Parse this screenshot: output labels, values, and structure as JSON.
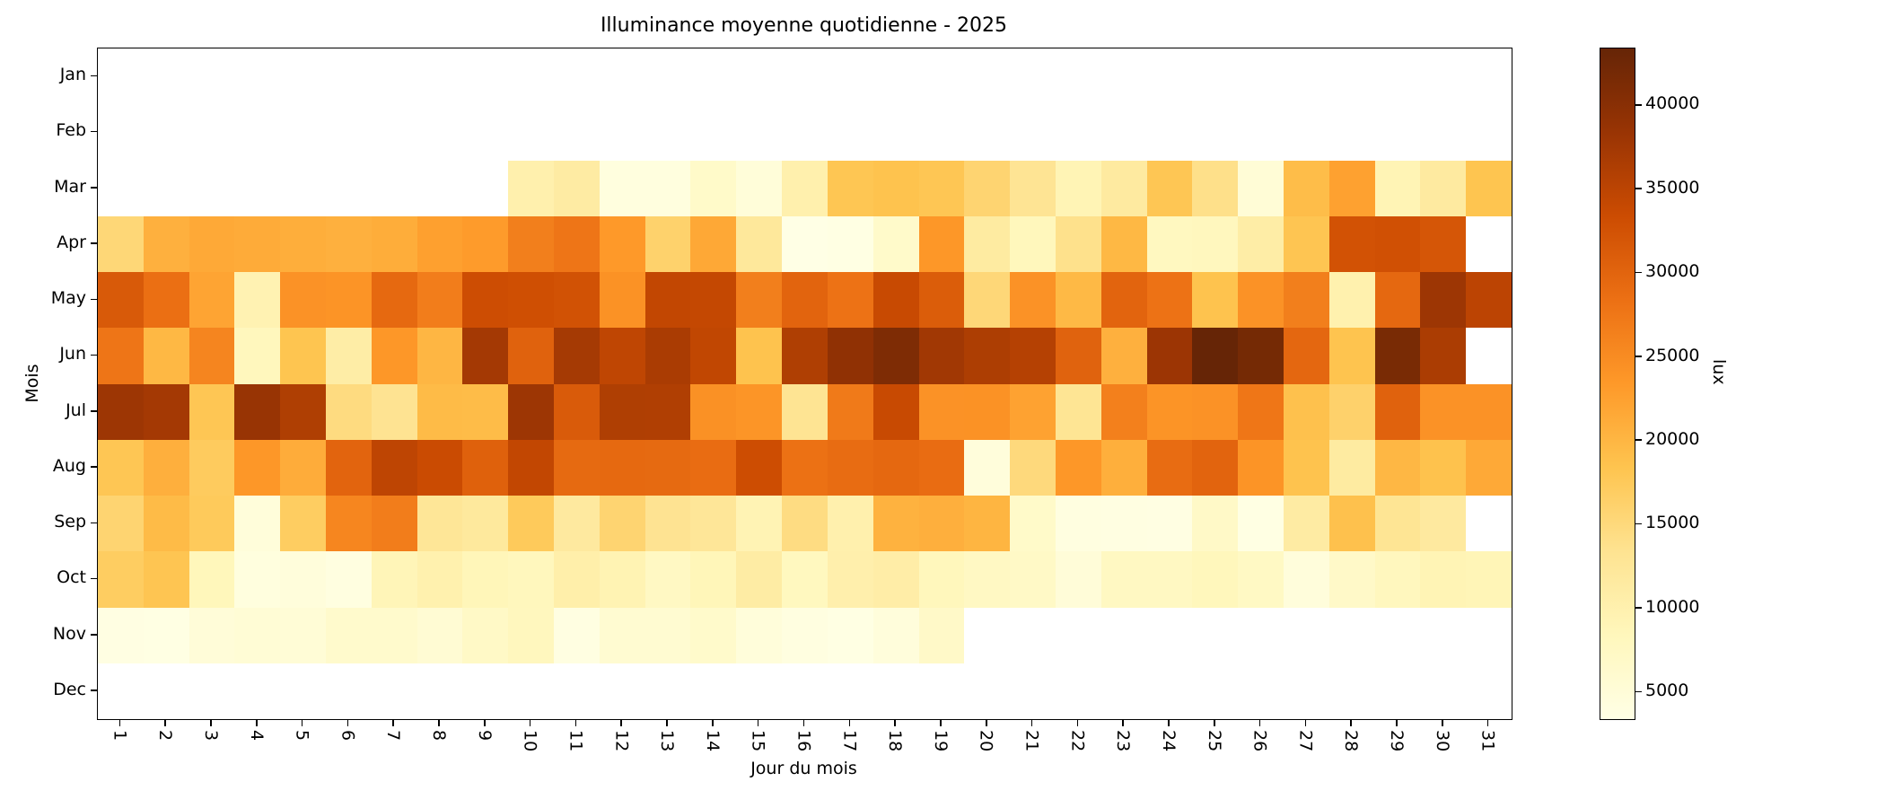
{
  "chart_data": {
    "type": "heatmap",
    "title": "Illuminance moyenne quotidienne - 2025",
    "xlabel": "Jour du mois",
    "ylabel": "Mois",
    "x_tick_labels": [
      "1",
      "2",
      "3",
      "4",
      "5",
      "6",
      "7",
      "8",
      "9",
      "10",
      "11",
      "12",
      "13",
      "14",
      "15",
      "16",
      "17",
      "18",
      "19",
      "20",
      "21",
      "22",
      "23",
      "24",
      "25",
      "26",
      "27",
      "28",
      "29",
      "30",
      "31"
    ],
    "y_tick_labels": [
      "Jan",
      "Feb",
      "Mar",
      "Apr",
      "May",
      "Jun",
      "Jul",
      "Aug",
      "Sep",
      "Oct",
      "Nov",
      "Dec"
    ],
    "vmin": 3400,
    "vmax": 43400,
    "nan_color": "#ffffff",
    "colormap_name": "YlOrBr",
    "colormap_stops": [
      {
        "t": 0.0,
        "color": "#ffffe5"
      },
      {
        "t": 0.125,
        "color": "#fff7bc"
      },
      {
        "t": 0.25,
        "color": "#fee391"
      },
      {
        "t": 0.375,
        "color": "#fec44f"
      },
      {
        "t": 0.5,
        "color": "#fe9929"
      },
      {
        "t": 0.625,
        "color": "#ec7014"
      },
      {
        "t": 0.75,
        "color": "#cc4c02"
      },
      {
        "t": 0.875,
        "color": "#993404"
      },
      {
        "t": 1.0,
        "color": "#662506"
      }
    ],
    "colorbar": {
      "label": "lux",
      "ticks": [
        5000,
        10000,
        15000,
        20000,
        25000,
        30000,
        35000,
        40000
      ]
    },
    "series": [
      {
        "name": "Jan",
        "values": [
          null,
          null,
          null,
          null,
          null,
          null,
          null,
          null,
          null,
          null,
          null,
          null,
          null,
          null,
          null,
          null,
          null,
          null,
          null,
          null,
          null,
          null,
          null,
          null,
          null,
          null,
          null,
          null,
          null,
          null,
          null
        ]
      },
      {
        "name": "Feb",
        "values": [
          null,
          null,
          null,
          null,
          null,
          null,
          null,
          null,
          null,
          null,
          null,
          null,
          null,
          null,
          null,
          null,
          null,
          null,
          null,
          null,
          null,
          null,
          null,
          null,
          null,
          null,
          null,
          null,
          null,
          null,
          null
        ]
      },
      {
        "name": "Mar",
        "values": [
          null,
          null,
          null,
          null,
          null,
          null,
          null,
          null,
          null,
          10200,
          11300,
          4300,
          4200,
          6800,
          4900,
          10200,
          18100,
          18500,
          18000,
          15800,
          13100,
          9200,
          11700,
          18000,
          13900,
          5200,
          19200,
          22500,
          9200,
          11600,
          18300
        ]
      },
      {
        "name": "Apr",
        "values": [
          15400,
          20700,
          21500,
          21300,
          21000,
          20700,
          21100,
          22600,
          23200,
          26600,
          27800,
          23400,
          16200,
          21700,
          12200,
          3400,
          3700,
          6700,
          23700,
          11500,
          8400,
          13800,
          19800,
          7900,
          8100,
          11000,
          18200,
          32500,
          32800,
          32000,
          null
        ]
      },
      {
        "name": "May",
        "values": [
          31500,
          28600,
          22100,
          9600,
          24200,
          24000,
          29400,
          26800,
          33200,
          33000,
          32600,
          24300,
          34400,
          34200,
          26600,
          30000,
          28200,
          33800,
          31100,
          15300,
          24200,
          19700,
          30000,
          28100,
          18500,
          24200,
          26600,
          10000,
          29500,
          38000,
          35000
        ]
      },
      {
        "name": "Jun",
        "values": [
          27800,
          19800,
          25800,
          8300,
          18300,
          11000,
          23600,
          20000,
          37300,
          30300,
          37200,
          34700,
          36700,
          34500,
          18500,
          36200,
          39300,
          41000,
          37600,
          36400,
          35700,
          30200,
          20700,
          38100,
          43400,
          41900,
          29600,
          18400,
          41500,
          36600,
          null
        ]
      },
      {
        "name": "Jul",
        "values": [
          38000,
          37300,
          18000,
          38500,
          36200,
          14700,
          13300,
          19500,
          19300,
          38000,
          31300,
          36200,
          36100,
          24400,
          23900,
          13200,
          27200,
          33800,
          24200,
          24300,
          22300,
          13000,
          26500,
          24000,
          24200,
          27700,
          18700,
          16300,
          30300,
          24200,
          24200
        ]
      },
      {
        "name": "Aug",
        "values": [
          18000,
          20800,
          17300,
          23700,
          21200,
          30000,
          34800,
          33600,
          30500,
          34400,
          29300,
          29400,
          29300,
          28900,
          33300,
          28300,
          29000,
          29500,
          28900,
          4600,
          15000,
          23700,
          20900,
          29000,
          30000,
          24000,
          18500,
          11500,
          19900,
          18600,
          21500
        ]
      },
      {
        "name": "Sep",
        "values": [
          15800,
          19500,
          17500,
          4800,
          17000,
          25700,
          26800,
          12700,
          12000,
          17500,
          11800,
          15800,
          13300,
          12600,
          9300,
          14500,
          10200,
          20500,
          20800,
          20200,
          6800,
          4000,
          3900,
          3800,
          7000,
          3600,
          11300,
          18700,
          13000,
          11800,
          null
        ]
      },
      {
        "name": "Oct",
        "values": [
          17000,
          18200,
          8500,
          4300,
          4600,
          4000,
          8900,
          10000,
          8700,
          8300,
          10500,
          9500,
          7600,
          8700,
          11200,
          8000,
          10300,
          10800,
          8400,
          7600,
          7200,
          5000,
          7700,
          7700,
          8400,
          7400,
          4600,
          6900,
          8100,
          9200,
          9000
        ]
      },
      {
        "name": "Nov",
        "values": [
          3800,
          3600,
          5000,
          5400,
          5200,
          6400,
          6400,
          5600,
          7200,
          8200,
          3900,
          5800,
          5800,
          6600,
          4800,
          4000,
          3700,
          4600,
          6900,
          null,
          null,
          null,
          null,
          null,
          null,
          null,
          null,
          null,
          null,
          null,
          null
        ]
      },
      {
        "name": "Dec",
        "values": [
          null,
          null,
          null,
          null,
          null,
          null,
          null,
          null,
          null,
          null,
          null,
          null,
          null,
          null,
          null,
          null,
          null,
          null,
          null,
          null,
          null,
          null,
          null,
          null,
          null,
          null,
          null,
          null,
          null,
          null,
          null
        ]
      }
    ],
    "layout": {
      "grid": false,
      "legend": false,
      "colorbar_position": "right",
      "x_tick_rotation_deg": 90
    },
    "colors": {
      "background": "#ffffff",
      "text": "#000000",
      "axis": "#000000"
    }
  }
}
